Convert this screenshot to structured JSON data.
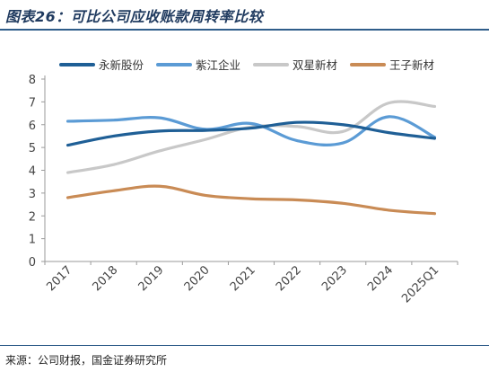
{
  "header": {
    "title": "图表26：可比公司应收账款周转率比较"
  },
  "footer": {
    "source": "来源：公司财报，国金证券研究所"
  },
  "chart_data": {
    "type": "line",
    "title": "图表26：可比公司应收账款周转率比较",
    "xlabel": "",
    "ylabel": "",
    "categories": [
      "2017",
      "2018",
      "2019",
      "2020",
      "2021",
      "2022",
      "2023",
      "2024",
      "2025Q1"
    ],
    "ylim": [
      0,
      8
    ],
    "yticks": [
      0,
      1,
      2,
      3,
      4,
      5,
      6,
      7,
      8
    ],
    "grid": false,
    "legend_position": "top",
    "series": [
      {
        "name": "永新股份",
        "color": "#1f5f96",
        "values": [
          5.1,
          5.5,
          5.72,
          5.75,
          5.85,
          6.1,
          6.0,
          5.65,
          5.4
        ]
      },
      {
        "name": "紫江企业",
        "color": "#5b9bd5",
        "values": [
          6.15,
          6.2,
          6.3,
          5.8,
          6.05,
          5.3,
          5.2,
          6.35,
          5.45
        ]
      },
      {
        "name": "双星新材",
        "color": "#c8c8c8",
        "values": [
          3.9,
          4.25,
          4.85,
          5.35,
          5.9,
          5.92,
          5.7,
          6.95,
          6.8
        ]
      },
      {
        "name": "王子新材",
        "color": "#c98b55",
        "values": [
          2.8,
          3.1,
          3.3,
          2.9,
          2.75,
          2.7,
          2.55,
          2.25,
          2.1
        ]
      }
    ]
  }
}
